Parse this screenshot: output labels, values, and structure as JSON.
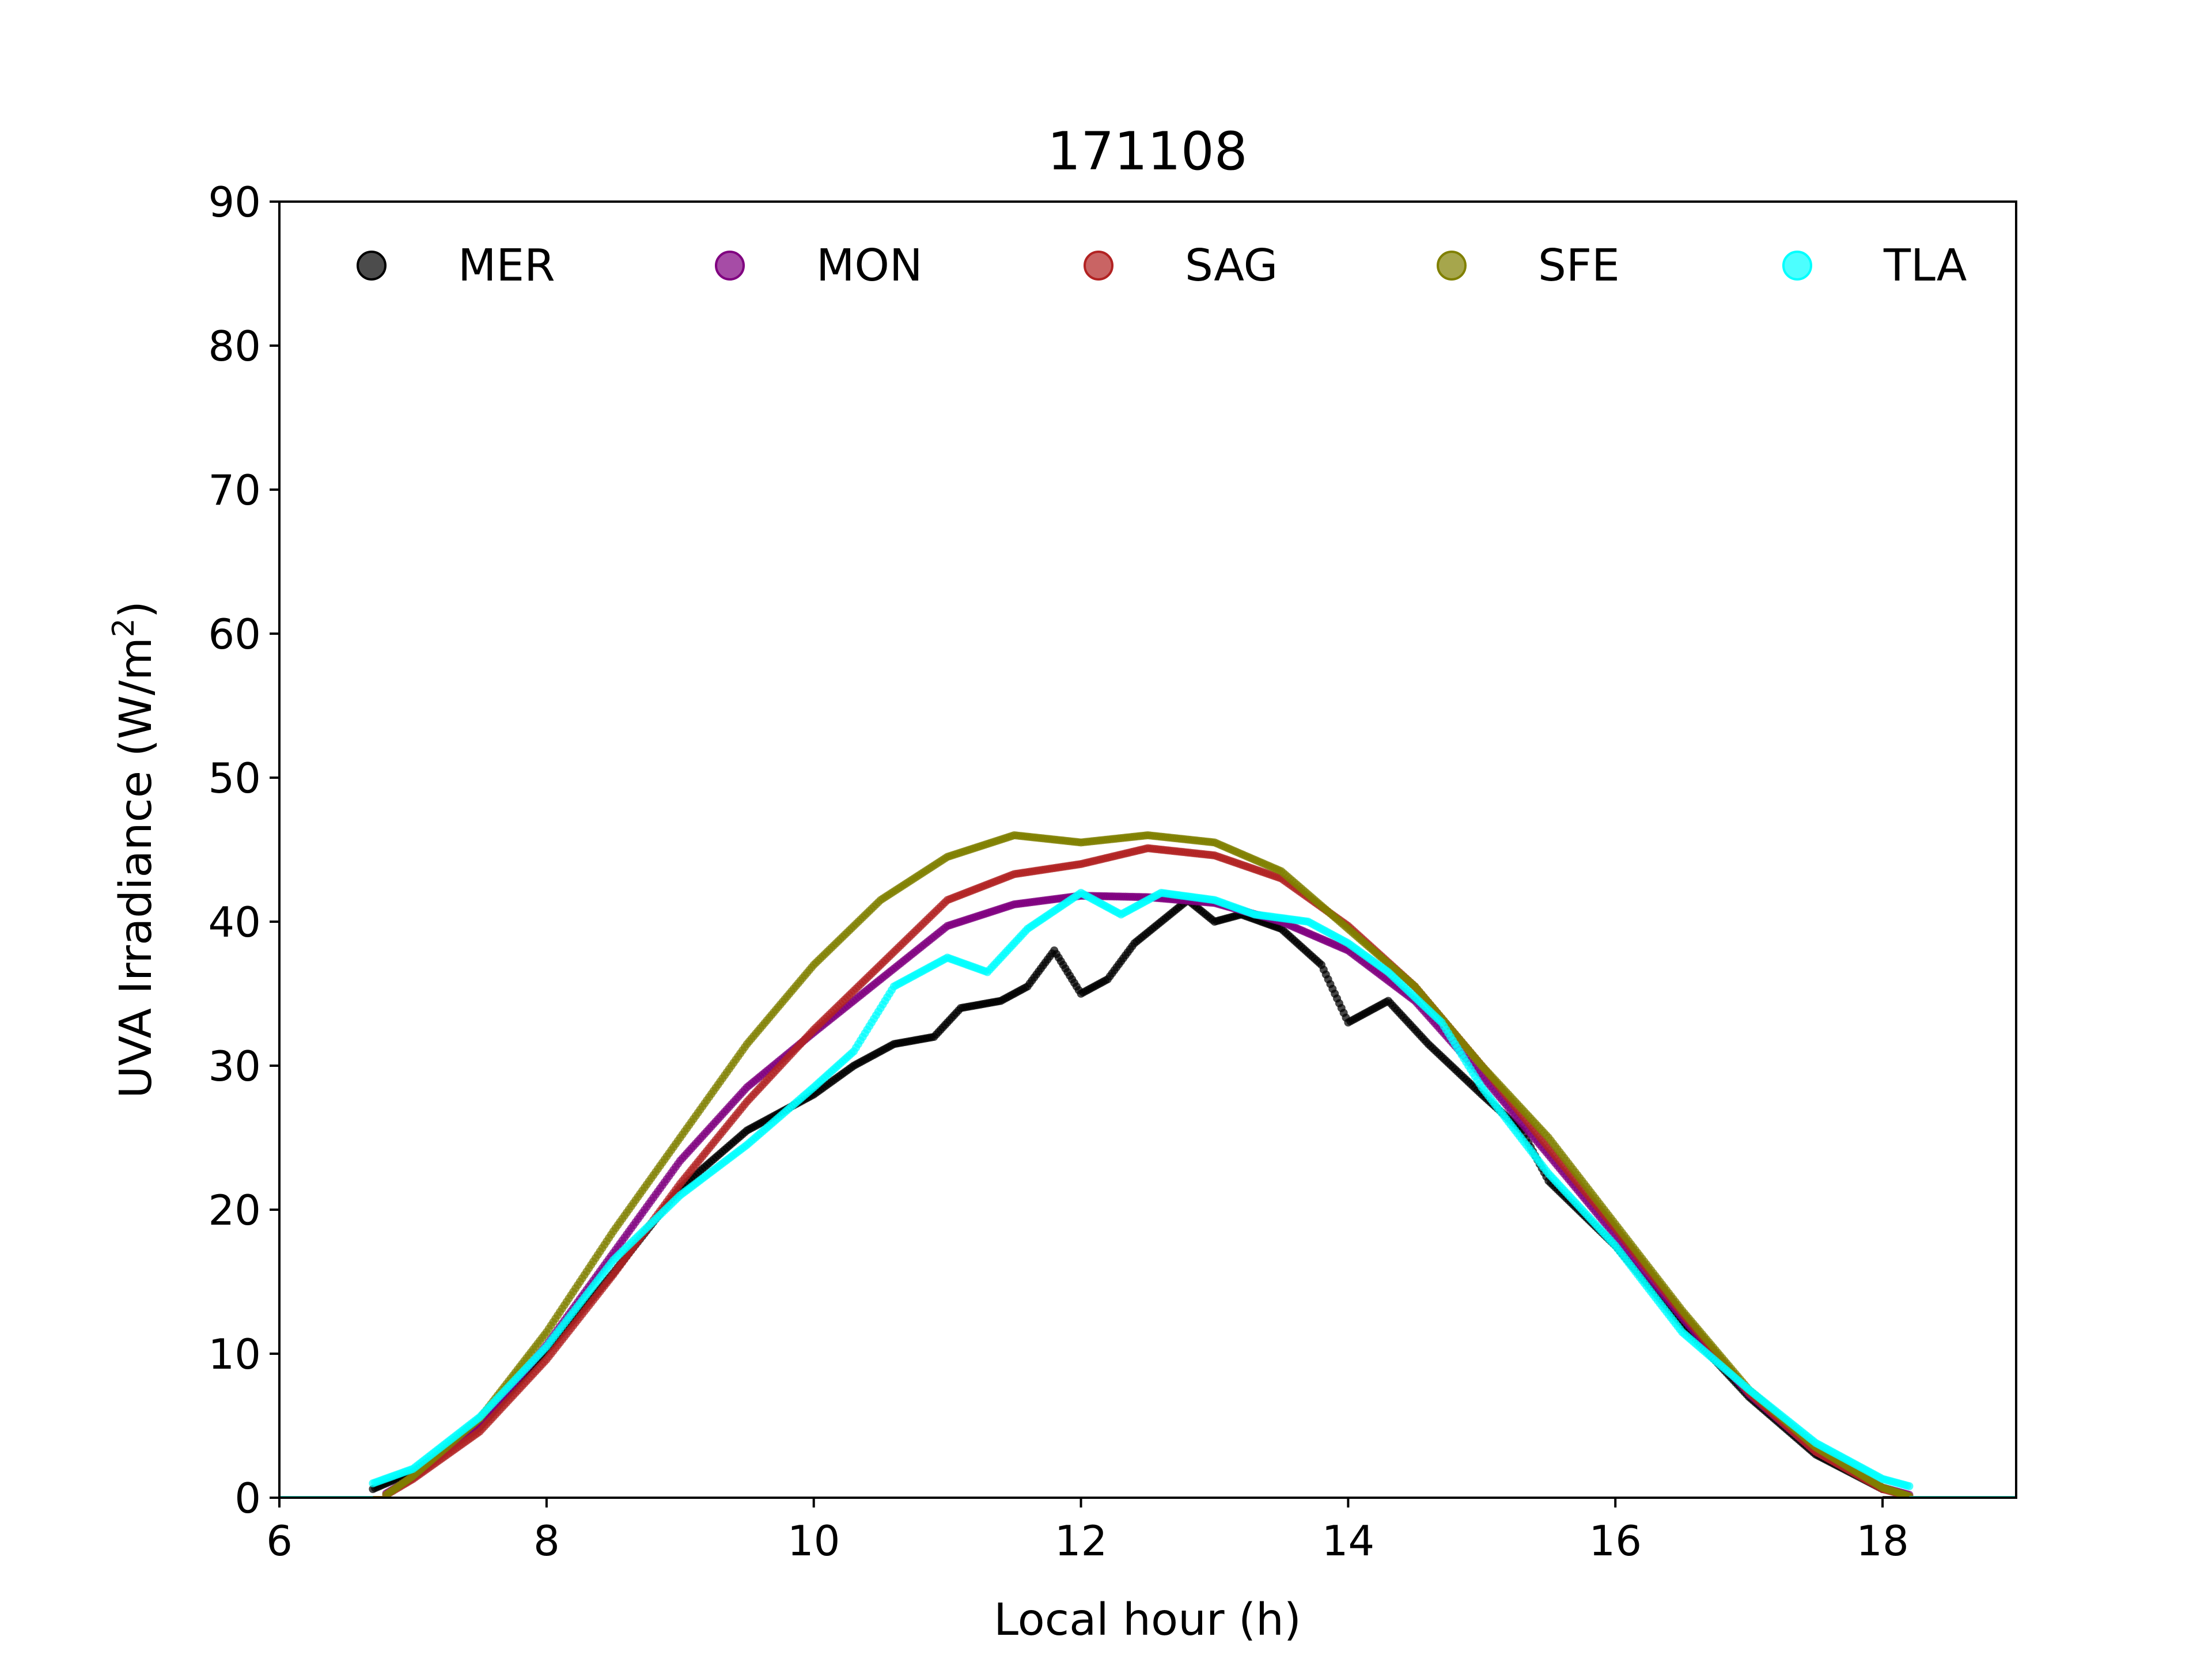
{
  "chart_data": {
    "type": "scatter",
    "title": "171108",
    "xlabel": "Local hour (h)",
    "ylabel_main": "UVA Irradiance (W/m",
    "ylabel_sup": "2",
    "ylabel_end": ")",
    "xlim": [
      6,
      19
    ],
    "ylim": [
      0,
      90
    ],
    "xticks": [
      6,
      8,
      10,
      12,
      14,
      16,
      18
    ],
    "yticks": [
      0,
      10,
      20,
      30,
      40,
      50,
      60,
      70,
      80,
      90
    ],
    "grid": false,
    "legend_position": "top",
    "series": [
      {
        "name": "MER",
        "color": "#000000",
        "points": [
          [
            6.7,
            0.6
          ],
          [
            7.0,
            1.8
          ],
          [
            7.5,
            4.9
          ],
          [
            8.0,
            10.2
          ],
          [
            8.5,
            15.6
          ],
          [
            9.0,
            21.5
          ],
          [
            9.5,
            25.5
          ],
          [
            10.0,
            28.0
          ],
          [
            10.3,
            30.0
          ],
          [
            10.6,
            31.5
          ],
          [
            10.9,
            32.0
          ],
          [
            11.1,
            34.0
          ],
          [
            11.4,
            34.5
          ],
          [
            11.6,
            35.5
          ],
          [
            11.8,
            38.0
          ],
          [
            12.0,
            35.0
          ],
          [
            12.2,
            36.0
          ],
          [
            12.4,
            38.5
          ],
          [
            12.6,
            40.0
          ],
          [
            12.8,
            41.5
          ],
          [
            13.0,
            40.0
          ],
          [
            13.2,
            40.5
          ],
          [
            13.5,
            39.5
          ],
          [
            13.8,
            37.0
          ],
          [
            14.0,
            33.0
          ],
          [
            14.3,
            34.5
          ],
          [
            14.6,
            31.5
          ],
          [
            15.0,
            28.0
          ],
          [
            15.3,
            25.5
          ],
          [
            15.5,
            22.0
          ],
          [
            16.0,
            17.5
          ],
          [
            16.5,
            12.0
          ],
          [
            17.0,
            7.0
          ],
          [
            17.5,
            3.0
          ],
          [
            18.0,
            0.6
          ]
        ]
      },
      {
        "name": "MON",
        "color": "#800080",
        "points": [
          [
            6.8,
            0.3
          ],
          [
            7.0,
            1.4
          ],
          [
            7.5,
            5.1
          ],
          [
            8.0,
            10.6
          ],
          [
            8.5,
            17.0
          ],
          [
            9.0,
            23.4
          ],
          [
            9.5,
            28.5
          ],
          [
            10.0,
            32.3
          ],
          [
            10.5,
            36.0
          ],
          [
            11.0,
            39.7
          ],
          [
            11.5,
            41.2
          ],
          [
            12.0,
            41.8
          ],
          [
            12.5,
            41.7
          ],
          [
            13.0,
            41.3
          ],
          [
            13.5,
            40.0
          ],
          [
            14.0,
            38.0
          ],
          [
            14.5,
            34.5
          ],
          [
            15.0,
            29.3
          ],
          [
            15.5,
            23.8
          ],
          [
            16.0,
            18.2
          ],
          [
            16.5,
            12.5
          ],
          [
            17.0,
            7.2
          ],
          [
            17.5,
            3.2
          ],
          [
            18.0,
            0.7
          ],
          [
            18.2,
            0.2
          ]
        ]
      },
      {
        "name": "SAG",
        "color": "#b22222",
        "points": [
          [
            6.8,
            0.2
          ],
          [
            7.0,
            1.3
          ],
          [
            7.5,
            4.6
          ],
          [
            8.0,
            9.6
          ],
          [
            8.5,
            15.5
          ],
          [
            9.0,
            21.8
          ],
          [
            9.5,
            27.5
          ],
          [
            10.0,
            32.5
          ],
          [
            10.5,
            37.0
          ],
          [
            11.0,
            41.5
          ],
          [
            11.5,
            43.3
          ],
          [
            12.0,
            44.0
          ],
          [
            12.5,
            45.1
          ],
          [
            13.0,
            44.6
          ],
          [
            13.5,
            43.0
          ],
          [
            14.0,
            39.7
          ],
          [
            14.5,
            35.5
          ],
          [
            15.0,
            30.0
          ],
          [
            15.5,
            24.3
          ],
          [
            16.0,
            18.7
          ],
          [
            16.5,
            12.8
          ],
          [
            17.0,
            7.3
          ],
          [
            17.5,
            3.2
          ],
          [
            18.0,
            0.6
          ],
          [
            18.2,
            0.1
          ]
        ]
      },
      {
        "name": "SFE",
        "color": "#808000",
        "points": [
          [
            6.8,
            0.2
          ],
          [
            7.0,
            1.5
          ],
          [
            7.5,
            5.5
          ],
          [
            8.0,
            11.5
          ],
          [
            8.5,
            18.5
          ],
          [
            9.0,
            25.0
          ],
          [
            9.5,
            31.5
          ],
          [
            10.0,
            37.0
          ],
          [
            10.5,
            41.5
          ],
          [
            11.0,
            44.5
          ],
          [
            11.5,
            46.0
          ],
          [
            12.0,
            45.5
          ],
          [
            12.5,
            46.0
          ],
          [
            13.0,
            45.5
          ],
          [
            13.5,
            43.5
          ],
          [
            14.0,
            39.5
          ],
          [
            14.5,
            35.5
          ],
          [
            15.0,
            30.0
          ],
          [
            15.5,
            25.0
          ],
          [
            16.0,
            19.0
          ],
          [
            16.5,
            13.0
          ],
          [
            17.0,
            7.5
          ],
          [
            17.5,
            3.5
          ],
          [
            18.0,
            0.7
          ],
          [
            18.2,
            0.1
          ]
        ]
      },
      {
        "name": "TLA",
        "color": "#00ffff",
        "points": [
          [
            6.7,
            1.0
          ],
          [
            7.0,
            2.0
          ],
          [
            7.5,
            5.6
          ],
          [
            8.0,
            10.5
          ],
          [
            8.5,
            16.5
          ],
          [
            9.0,
            21.0
          ],
          [
            9.5,
            24.5
          ],
          [
            10.0,
            28.5
          ],
          [
            10.3,
            31.0
          ],
          [
            10.6,
            35.5
          ],
          [
            11.0,
            37.5
          ],
          [
            11.3,
            36.5
          ],
          [
            11.6,
            39.5
          ],
          [
            12.0,
            42.0
          ],
          [
            12.3,
            40.5
          ],
          [
            12.6,
            42.0
          ],
          [
            13.0,
            41.5
          ],
          [
            13.3,
            40.5
          ],
          [
            13.7,
            40.0
          ],
          [
            14.0,
            38.5
          ],
          [
            14.3,
            36.5
          ],
          [
            14.7,
            33.0
          ],
          [
            15.0,
            28.5
          ],
          [
            15.5,
            22.5
          ],
          [
            16.0,
            17.5
          ],
          [
            16.5,
            11.5
          ],
          [
            17.0,
            7.5
          ],
          [
            17.5,
            3.8
          ],
          [
            18.0,
            1.3
          ],
          [
            18.2,
            0.8
          ]
        ]
      }
    ]
  }
}
